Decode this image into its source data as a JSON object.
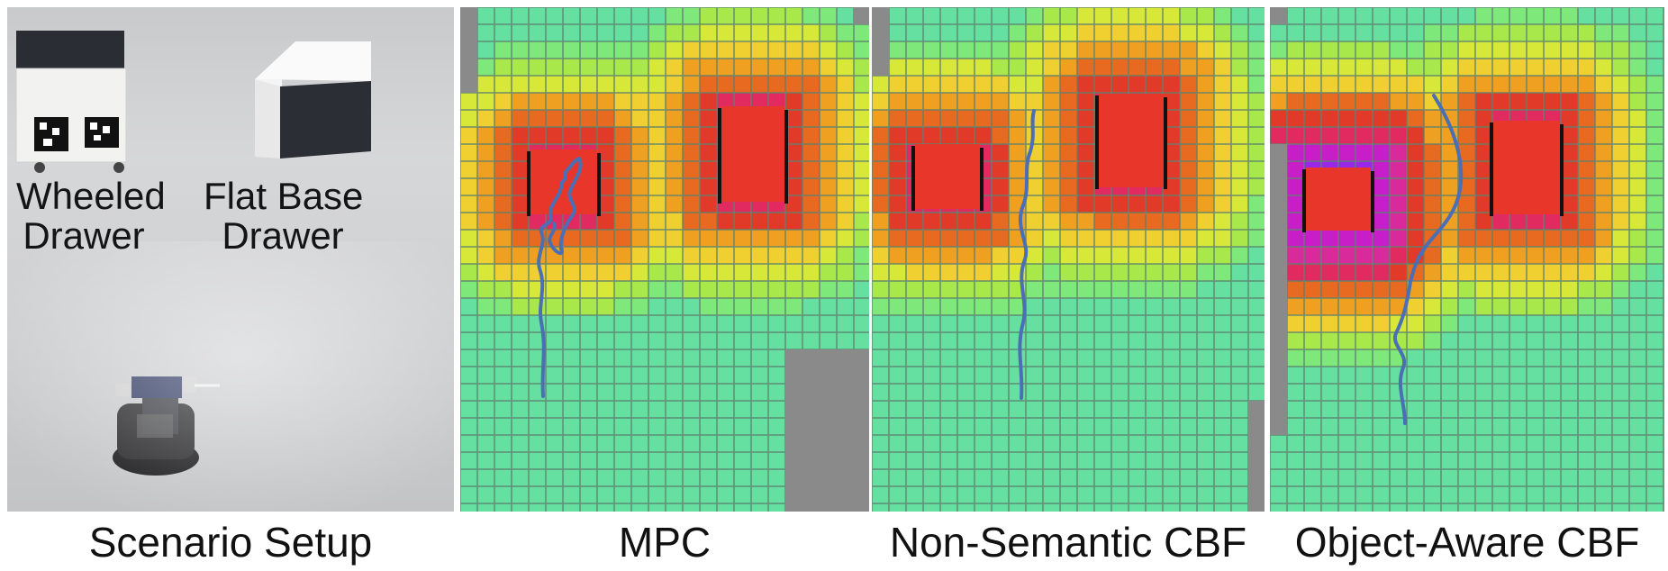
{
  "panels": [
    {
      "id": "photo",
      "caption": "Scenario Setup",
      "labels": {
        "wheeled_line1": "Wheeled",
        "wheeled_line2": "Drawer",
        "flat_line1": "Flat Base",
        "flat_line2": "Drawer"
      }
    },
    {
      "id": "mpc",
      "caption": "MPC"
    },
    {
      "id": "nonsem",
      "caption": "Non-Semantic CBF"
    },
    {
      "id": "objaware",
      "caption": "Object-Aware CBF"
    }
  ],
  "colors": {
    "safe_cell": "#66e0a0",
    "grid_line": "#2f7d55",
    "obstacle": "#e8372a",
    "trajectory": "#4a6fb5",
    "unknown": "#8a8a8a",
    "cost_scale": [
      "#66e0a0",
      "#7ee87a",
      "#a9e84a",
      "#d8e838",
      "#f0d030",
      "#f0a020",
      "#e86a20",
      "#e23a28",
      "#e02a60",
      "#d82a9a",
      "#c81ec8",
      "#9a28e8"
    ]
  }
}
